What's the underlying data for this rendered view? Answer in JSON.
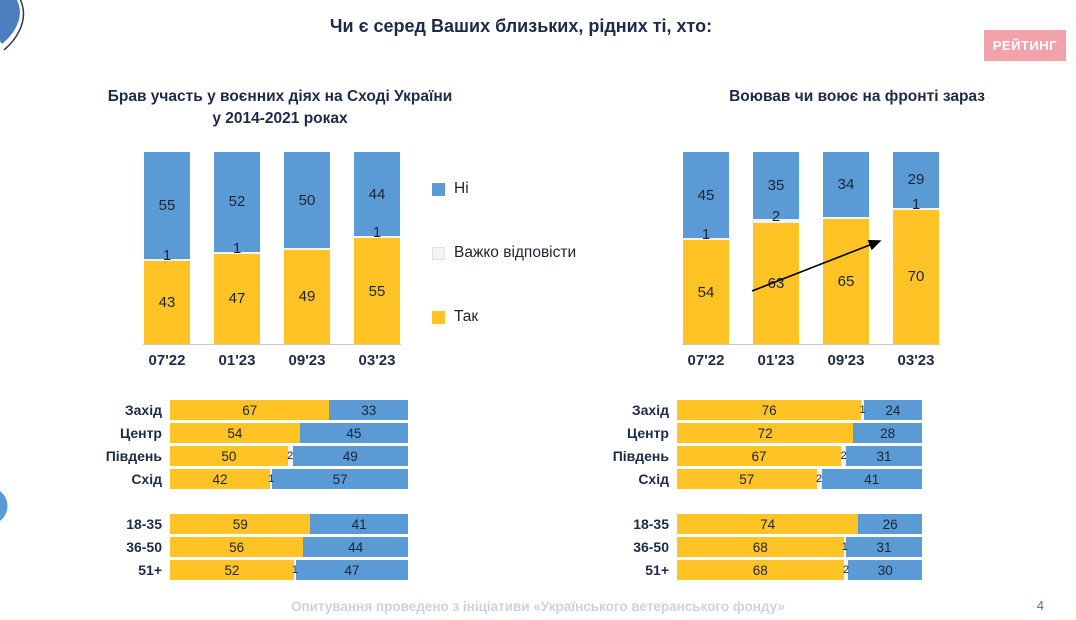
{
  "page": {
    "title": "Чи є серед Ваших близьких, рідних ті, хто:",
    "logo": "РЕЙТИНГ",
    "footer": "Опитування проведено з ініціативи «Українського ветеранського фонду»",
    "page_number": "4"
  },
  "colors": {
    "yellow": "#FFC325",
    "blue": "#5B9BD5",
    "neutral": "#F3F3F1",
    "navy": "#1C2B4A",
    "value_text": "#1D2433",
    "logo_bg": "#F2A2AB",
    "footer_text": "#CCD3DC",
    "page_number_blue": "#4472C4"
  },
  "legend": {
    "items": [
      {
        "label": "Ні",
        "color_key": "blue"
      },
      {
        "label": "Важко відповісти",
        "color_key": "neutral"
      },
      {
        "label": "Так",
        "color_key": "yellow"
      }
    ]
  },
  "chart_data": [
    {
      "id": "left-column",
      "type": "bar",
      "orientation": "vertical",
      "stacked_percent": true,
      "title_lines": [
        "Брав участь у воєнних діях на Сході України",
        "у 2014-2021 роках"
      ],
      "categories": [
        "07'22",
        "01'23",
        "09'23",
        "03'23"
      ],
      "series": [
        {
          "name": "Ні",
          "color_key": "blue",
          "values": [
            55,
            52,
            50,
            44
          ],
          "labels": [
            "55",
            "52",
            "50",
            "44"
          ]
        },
        {
          "name": "Важко відповісти",
          "color_key": "neutral",
          "values": [
            1,
            1,
            1,
            1
          ],
          "labels": [
            "1",
            "1",
            "",
            "1"
          ]
        },
        {
          "name": "Так",
          "color_key": "yellow",
          "values": [
            43,
            47,
            49,
            55
          ],
          "labels": [
            "43",
            "47",
            "49",
            "55"
          ]
        }
      ]
    },
    {
      "id": "right-column",
      "type": "bar",
      "orientation": "vertical",
      "stacked_percent": true,
      "title_lines": [
        "Воював чи воює на фронті зараз"
      ],
      "annotation": "trend-arrow from 01'23 value 63 to top of 03'23 bar",
      "categories": [
        "07'22",
        "01'23",
        "09'23",
        "03'23"
      ],
      "series": [
        {
          "name": "Ні",
          "color_key": "blue",
          "values": [
            45,
            35,
            34,
            29
          ],
          "labels": [
            "45",
            "35",
            "34",
            "29"
          ]
        },
        {
          "name": "Важко відповісти",
          "color_key": "neutral",
          "values": [
            1,
            2,
            1,
            1
          ],
          "labels": [
            "1",
            "2",
            "",
            "1"
          ]
        },
        {
          "name": "Так",
          "color_key": "yellow",
          "values": [
            54,
            63,
            65,
            70
          ],
          "labels": [
            "54",
            "63",
            "65",
            "70"
          ]
        }
      ]
    },
    {
      "id": "left-regions",
      "type": "bar",
      "orientation": "horizontal",
      "stacked_percent": true,
      "categories": [
        "Захід",
        "Центр",
        "Південь",
        "Схід"
      ],
      "series": [
        {
          "name": "Так",
          "color_key": "yellow",
          "values": [
            67,
            54,
            50,
            42
          ],
          "labels": [
            "67",
            "54",
            "50",
            "42"
          ]
        },
        {
          "name": "Важко відповісти",
          "color_key": "neutral",
          "values": [
            0,
            0,
            2,
            1
          ],
          "labels": [
            "",
            "",
            "2",
            "1"
          ]
        },
        {
          "name": "Ні",
          "color_key": "blue",
          "values": [
            33,
            45,
            49,
            57
          ],
          "labels": [
            "33",
            "45",
            "49",
            "57"
          ]
        }
      ]
    },
    {
      "id": "left-ages",
      "type": "bar",
      "orientation": "horizontal",
      "stacked_percent": true,
      "categories": [
        "18-35",
        "36-50",
        "51+"
      ],
      "series": [
        {
          "name": "Так",
          "color_key": "yellow",
          "values": [
            59,
            56,
            52
          ],
          "labels": [
            "59",
            "56",
            "52"
          ]
        },
        {
          "name": "Важко відповісти",
          "color_key": "neutral",
          "values": [
            0,
            0,
            1
          ],
          "labels": [
            "",
            "",
            "1"
          ]
        },
        {
          "name": "Ні",
          "color_key": "blue",
          "values": [
            41,
            44,
            47
          ],
          "labels": [
            "41",
            "44",
            "47"
          ]
        }
      ]
    },
    {
      "id": "right-regions",
      "type": "bar",
      "orientation": "horizontal",
      "stacked_percent": true,
      "categories": [
        "Захід",
        "Центр",
        "Південь",
        "Схід"
      ],
      "series": [
        {
          "name": "Так",
          "color_key": "yellow",
          "values": [
            76,
            72,
            67,
            57
          ],
          "labels": [
            "76",
            "72",
            "67",
            "57"
          ]
        },
        {
          "name": "Важко відповісти",
          "color_key": "neutral",
          "values": [
            1,
            0,
            2,
            2
          ],
          "labels": [
            "1",
            "",
            "2",
            "2"
          ]
        },
        {
          "name": "Ні",
          "color_key": "blue",
          "values": [
            24,
            28,
            31,
            41
          ],
          "labels": [
            "24",
            "28",
            "31",
            "41"
          ]
        }
      ]
    },
    {
      "id": "right-ages",
      "type": "bar",
      "orientation": "horizontal",
      "stacked_percent": true,
      "categories": [
        "18-35",
        "36-50",
        "51+"
      ],
      "series": [
        {
          "name": "Так",
          "color_key": "yellow",
          "values": [
            74,
            68,
            68
          ],
          "labels": [
            "74",
            "68",
            "68"
          ]
        },
        {
          "name": "Важко відповісти",
          "color_key": "neutral",
          "values": [
            0,
            1,
            2
          ],
          "labels": [
            "",
            "1",
            "2"
          ]
        },
        {
          "name": "Ні",
          "color_key": "blue",
          "values": [
            26,
            31,
            30
          ],
          "labels": [
            "26",
            "31",
            "30"
          ]
        }
      ]
    }
  ]
}
